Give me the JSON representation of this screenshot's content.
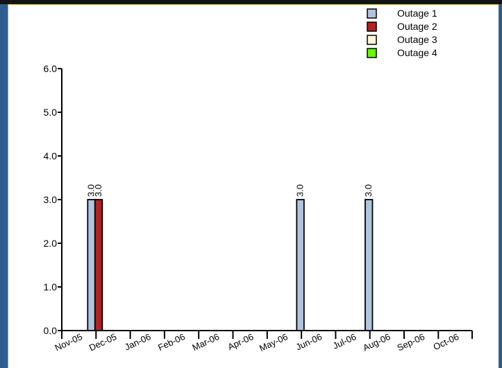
{
  "chart_data": {
    "type": "bar",
    "categories": [
      "Nov-05",
      "Dec-05",
      "Jan-06",
      "Feb-06",
      "Mar-06",
      "Apr-06",
      "May-06",
      "Jun-06",
      "Jul-06",
      "Aug-06",
      "Sep-06",
      "Oct-06"
    ],
    "series": [
      {
        "name": "Outage 1",
        "color": "#b0c4de",
        "values": [
          3.0,
          0,
          0,
          0,
          0,
          0,
          3.0,
          0,
          3.0,
          0,
          0,
          0
        ]
      },
      {
        "name": "Outage 2",
        "color": "#b22222",
        "values": [
          3.0,
          0,
          0,
          0,
          0,
          0,
          0,
          0,
          0,
          0,
          0,
          0
        ]
      },
      {
        "name": "Outage 3",
        "color": "#fff5d6",
        "values": [
          0,
          0,
          0,
          0,
          0,
          0,
          0,
          0,
          0,
          0,
          0,
          0
        ]
      },
      {
        "name": "Outage 4",
        "color": "#66ff00",
        "values": [
          0,
          0,
          0,
          0,
          0,
          0,
          0,
          0,
          0,
          0,
          0,
          0
        ]
      }
    ],
    "ylim": [
      0,
      6
    ],
    "yticks": [
      "0.0",
      "1.0",
      "2.0",
      "3.0",
      "4.0",
      "5.0",
      "6.0"
    ],
    "data_labels": "3.0",
    "legend_position": "top-right",
    "grid": false
  }
}
